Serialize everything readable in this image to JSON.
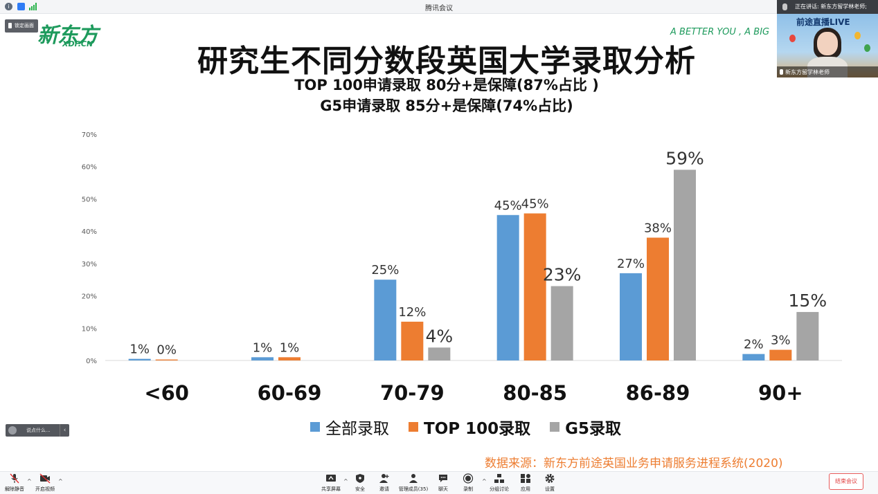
{
  "window": {
    "title": "腾讯会议"
  },
  "pin_tag": "锁定画面",
  "slide": {
    "logo_main": "新东方",
    "logo_sub": "XDF.CN",
    "slogan": "A BETTER YOU , A BIG",
    "title": "研究生不同分数段英国大学录取分析",
    "subtitle_1": "TOP 100申请录取 80分+是保障(87%占比 )",
    "subtitle_2": "G5申请录取 85分+是保障(74%占比)",
    "source": "数据来源：新东方前途英国业务申请服务进程系统(2020)"
  },
  "chart_data": {
    "type": "bar",
    "categories": [
      "<60",
      "60-69",
      "70-79",
      "80-85",
      "86-89",
      "90+"
    ],
    "series": [
      {
        "name": "全部录取",
        "color": "#5b9bd5",
        "values": [
          0.5,
          1,
          25,
          45,
          27,
          2
        ],
        "labels": [
          "1%",
          "1%",
          "25%",
          "45%",
          "27%",
          "2%"
        ]
      },
      {
        "name": "TOP 100录取",
        "color": "#ed7d31",
        "values": [
          0.3,
          1,
          12,
          45.5,
          38,
          3.3
        ],
        "labels": [
          "0%",
          "1%",
          "12%",
          "45%",
          "38%",
          "3%"
        ]
      },
      {
        "name": "G5录取",
        "color": "#a5a5a5",
        "values": [
          0,
          0,
          4,
          23,
          59,
          15
        ],
        "labels": [
          "",
          "",
          "4%",
          "23%",
          "59%",
          "15%"
        ]
      }
    ],
    "y_ticks": [
      "0%",
      "10%",
      "20%",
      "30%",
      "40%",
      "50%",
      "60%",
      "70%"
    ],
    "ylim": [
      0,
      70
    ],
    "legend_position": "bottom"
  },
  "speaker": {
    "text": "正在讲话: 新东方留学林老师;"
  },
  "video": {
    "live_title": "前途直播LIVE",
    "name": "新东方留学林老师"
  },
  "chat": {
    "placeholder": "说点什么...",
    "collapse_icon": "chevron-left-icon"
  },
  "toolbar": {
    "unmute": "解除静音",
    "start_video": "开启视频",
    "share_screen": "共享屏幕",
    "security": "安全",
    "invite": "邀请",
    "manage_members": "管理成员(35)",
    "chat": "聊天",
    "record": "录制",
    "breakout": "分组讨论",
    "apps": "应用",
    "settings": "设置",
    "end_meeting": "结束会议"
  }
}
